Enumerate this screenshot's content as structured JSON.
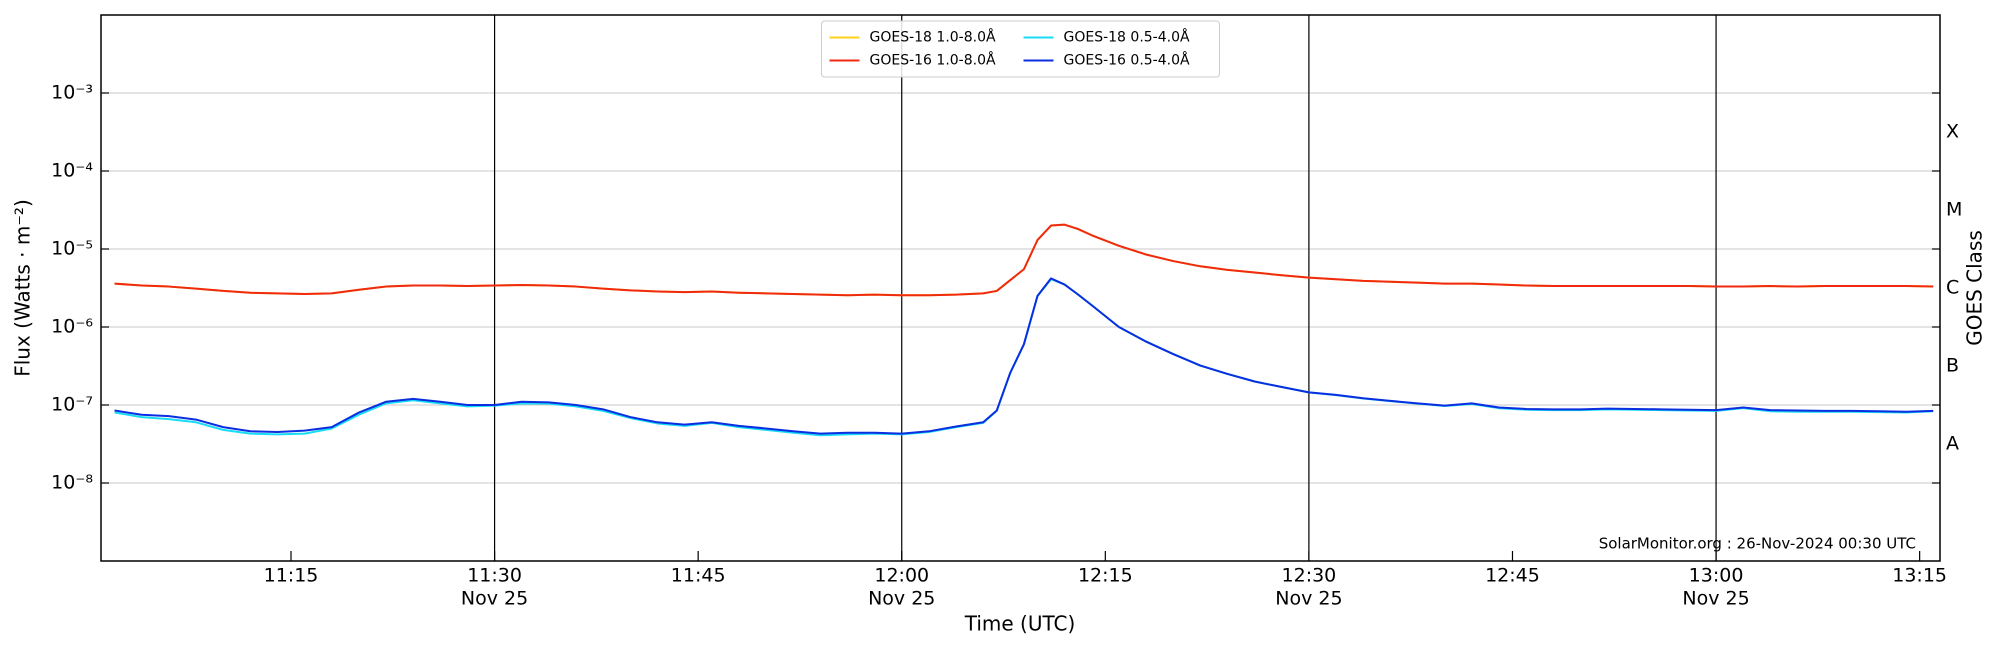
{
  "chart_data": {
    "type": "line",
    "annotation": "SolarMonitor.org : 26-Nov-2024 00:30 UTC",
    "xlabel": "Time (UTC)",
    "ylabel": "Flux (Watts · m⁻²)",
    "y2label": "GOES Class",
    "log_y": true,
    "grid": true,
    "legend": "upper center",
    "legend_columns": 2,
    "xlim": [
      "11:01",
      "13:16:30"
    ],
    "xticks": [
      "11:15",
      {
        "value": "11:30",
        "label": "11:30",
        "date": "Nov 25"
      },
      "11:45",
      {
        "value": "12:00",
        "label": "12:00",
        "date": "Nov 25"
      },
      "12:15",
      {
        "value": "12:30",
        "label": "12:30",
        "date": "Nov 25"
      },
      "12:45",
      {
        "value": "13:00",
        "label": "13:00",
        "date": "Nov 25"
      },
      "13:15"
    ],
    "ylim": [
      1e-09,
      0.01
    ],
    "yticks": [
      {
        "value": 1e-08,
        "label": "10⁻⁸"
      },
      {
        "value": 1e-07,
        "label": "10⁻⁷"
      },
      {
        "value": 1e-06,
        "label": "10⁻⁶"
      },
      {
        "value": 1e-05,
        "label": "10⁻⁵"
      },
      {
        "value": 0.0001,
        "label": "10⁻⁴"
      },
      {
        "value": 0.001,
        "label": "10⁻³"
      }
    ],
    "y2lim": [
      1e-09,
      0.01
    ],
    "y2ticks": [
      {
        "value": 3.16e-08,
        "label": "A"
      },
      {
        "value": 3.16e-07,
        "label": "B"
      },
      {
        "value": 3.16e-06,
        "label": "C"
      },
      {
        "value": 3.16e-05,
        "label": "M"
      },
      {
        "value": 0.000316,
        "label": "X"
      }
    ],
    "x": [
      "11:02",
      "11:04",
      "11:06",
      "11:08",
      "11:10",
      "11:12",
      "11:14",
      "11:16",
      "11:18",
      "11:20",
      "11:22",
      "11:24",
      "11:26",
      "11:28",
      "11:30",
      "11:32",
      "11:34",
      "11:36",
      "11:38",
      "11:40",
      "11:42",
      "11:44",
      "11:46",
      "11:48",
      "11:50",
      "11:52",
      "11:54",
      "11:56",
      "11:58",
      "12:00",
      "12:02",
      "12:04",
      "12:06",
      "12:07",
      "12:08",
      "12:09",
      "12:10",
      "12:11",
      "12:12",
      "12:13",
      "12:14",
      "12:16",
      "12:18",
      "12:20",
      "12:22",
      "12:24",
      "12:26",
      "12:28",
      "12:30",
      "12:32",
      "12:34",
      "12:36",
      "12:38",
      "12:40",
      "12:42",
      "12:44",
      "12:46",
      "12:48",
      "12:50",
      "12:52",
      "12:54",
      "12:56",
      "12:58",
      "13:00",
      "13:02",
      "13:04",
      "13:06",
      "13:08",
      "13:10",
      "13:12",
      "13:14",
      "13:16"
    ],
    "series": [
      {
        "name": "GOES-18 1.0-8.0Å",
        "color": "#ffd21a",
        "values": [
          3.6e-06,
          3.4e-06,
          3.3e-06,
          3.1e-06,
          2.9e-06,
          2.75e-06,
          2.7e-06,
          2.65e-06,
          2.7e-06,
          3e-06,
          3.3e-06,
          3.4e-06,
          3.4e-06,
          3.35e-06,
          3.4e-06,
          3.45e-06,
          3.4e-06,
          3.3e-06,
          3.1e-06,
          2.95e-06,
          2.85e-06,
          2.8e-06,
          2.85e-06,
          2.75e-06,
          2.7e-06,
          2.65e-06,
          2.6e-06,
          2.55e-06,
          2.6e-06,
          2.55e-06,
          2.55e-06,
          2.6e-06,
          2.7e-06,
          2.9e-06,
          4e-06,
          5.5e-06,
          1.3e-05,
          2e-05,
          2.05e-05,
          1.8e-05,
          1.5e-05,
          1.1e-05,
          8.5e-06,
          7e-06,
          6e-06,
          5.4e-06,
          5e-06,
          4.6e-06,
          4.3e-06,
          4.1e-06,
          3.9e-06,
          3.8e-06,
          3.7e-06,
          3.6e-06,
          3.6e-06,
          3.5e-06,
          3.4e-06,
          3.35e-06,
          3.35e-06,
          3.35e-06,
          3.35e-06,
          3.35e-06,
          3.35e-06,
          3.3e-06,
          3.3e-06,
          3.35e-06,
          3.3e-06,
          3.35e-06,
          3.35e-06,
          3.35e-06,
          3.35e-06,
          3.3e-06
        ]
      },
      {
        "name": "GOES-16 1.0-8.0Å",
        "color": "#f02a10",
        "values": [
          3.6e-06,
          3.4e-06,
          3.3e-06,
          3.1e-06,
          2.9e-06,
          2.75e-06,
          2.7e-06,
          2.65e-06,
          2.7e-06,
          3e-06,
          3.3e-06,
          3.4e-06,
          3.4e-06,
          3.35e-06,
          3.4e-06,
          3.45e-06,
          3.4e-06,
          3.3e-06,
          3.1e-06,
          2.95e-06,
          2.85e-06,
          2.8e-06,
          2.85e-06,
          2.75e-06,
          2.7e-06,
          2.65e-06,
          2.6e-06,
          2.55e-06,
          2.6e-06,
          2.55e-06,
          2.55e-06,
          2.6e-06,
          2.7e-06,
          2.9e-06,
          4e-06,
          5.5e-06,
          1.3e-05,
          2e-05,
          2.05e-05,
          1.8e-05,
          1.5e-05,
          1.1e-05,
          8.5e-06,
          7e-06,
          6e-06,
          5.4e-06,
          5e-06,
          4.6e-06,
          4.3e-06,
          4.1e-06,
          3.9e-06,
          3.8e-06,
          3.7e-06,
          3.6e-06,
          3.6e-06,
          3.5e-06,
          3.4e-06,
          3.35e-06,
          3.35e-06,
          3.35e-06,
          3.35e-06,
          3.35e-06,
          3.35e-06,
          3.3e-06,
          3.3e-06,
          3.35e-06,
          3.3e-06,
          3.35e-06,
          3.35e-06,
          3.35e-06,
          3.35e-06,
          3.3e-06
        ]
      },
      {
        "name": "GOES-18 0.5-4.0Å",
        "color": "#18dcf5",
        "values": [
          8e-08,
          7e-08,
          6.6e-08,
          6e-08,
          4.8e-08,
          4.3e-08,
          4.2e-08,
          4.3e-08,
          5e-08,
          7.5e-08,
          1.05e-07,
          1.15e-07,
          1.05e-07,
          9.6e-08,
          9.8e-08,
          1.05e-07,
          1.04e-07,
          9.6e-08,
          8.4e-08,
          6.8e-08,
          5.8e-08,
          5.4e-08,
          5.9e-08,
          5.2e-08,
          4.8e-08,
          4.4e-08,
          4.1e-08,
          4.2e-08,
          4.3e-08,
          4.2e-08,
          4.5e-08,
          5.2e-08,
          5.9e-08,
          8.4e-08,
          2.6e-07,
          6e-07,
          2.5e-06,
          4.1e-06,
          3.5e-06,
          2.6e-06,
          1.9e-06,
          1e-06,
          6.5e-07,
          4.5e-07,
          3.2e-07,
          2.5e-07,
          2e-07,
          1.7e-07,
          1.45e-07,
          1.34e-07,
          1.21e-07,
          1.12e-07,
          1.04e-07,
          9.7e-08,
          1.03e-07,
          9.1e-08,
          8.7e-08,
          8.6e-08,
          8.6e-08,
          8.8e-08,
          8.7e-08,
          8.6e-08,
          8.5e-08,
          8.4e-08,
          9.1e-08,
          8.3e-08,
          8.2e-08,
          8.2e-08,
          8.2e-08,
          8.1e-08,
          8e-08,
          8.3e-08
        ]
      },
      {
        "name": "GOES-16 0.5-4.0Å",
        "color": "#0a2ee0",
        "values": [
          8.5e-08,
          7.5e-08,
          7.2e-08,
          6.5e-08,
          5.2e-08,
          4.6e-08,
          4.5e-08,
          4.7e-08,
          5.2e-08,
          8e-08,
          1.1e-07,
          1.2e-07,
          1.1e-07,
          1e-07,
          1e-07,
          1.1e-07,
          1.08e-07,
          1e-07,
          8.8e-08,
          7e-08,
          6e-08,
          5.6e-08,
          6e-08,
          5.4e-08,
          5e-08,
          4.6e-08,
          4.3e-08,
          4.4e-08,
          4.4e-08,
          4.3e-08,
          4.6e-08,
          5.3e-08,
          6e-08,
          8.5e-08,
          2.6e-07,
          6e-07,
          2.5e-06,
          4.2e-06,
          3.5e-06,
          2.6e-06,
          1.9e-06,
          1e-06,
          6.5e-07,
          4.5e-07,
          3.2e-07,
          2.5e-07,
          2e-07,
          1.7e-07,
          1.45e-07,
          1.35e-07,
          1.22e-07,
          1.13e-07,
          1.05e-07,
          9.8e-08,
          1.05e-07,
          9.3e-08,
          8.9e-08,
          8.8e-08,
          8.8e-08,
          9e-08,
          8.9e-08,
          8.8e-08,
          8.7e-08,
          8.6e-08,
          9.3e-08,
          8.6e-08,
          8.5e-08,
          8.4e-08,
          8.4e-08,
          8.3e-08,
          8.2e-08,
          8.4e-08
        ]
      }
    ]
  }
}
